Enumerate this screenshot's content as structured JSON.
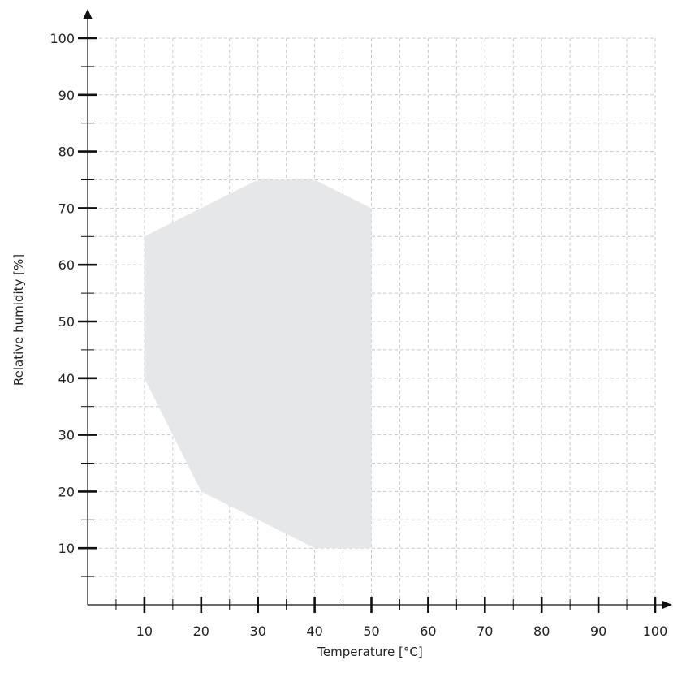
{
  "chart_data": {
    "type": "area",
    "title": "",
    "xlabel": "Temperature [°C]",
    "ylabel": "Relative humidity [%]",
    "xlim": [
      0,
      100
    ],
    "ylim": [
      0,
      100
    ],
    "x_ticks": [
      10,
      20,
      30,
      40,
      50,
      60,
      70,
      80,
      90,
      100
    ],
    "y_ticks": [
      10,
      20,
      30,
      40,
      50,
      60,
      70,
      80,
      90,
      100
    ],
    "minor_tick_step": 5,
    "grid": true,
    "grid_style": "dashed",
    "series": [
      {
        "points": [
          [
            10,
            65
          ],
          [
            20,
            70
          ],
          [
            30,
            75
          ],
          [
            40,
            75
          ],
          [
            50,
            70
          ],
          [
            50,
            10
          ],
          [
            40,
            10
          ],
          [
            30,
            15
          ],
          [
            20,
            20
          ],
          [
            10,
            40
          ]
        ],
        "fill_color": "#e6e7e8"
      }
    ]
  },
  "colors": {
    "axis": "#111111",
    "grid": "#c9c9c9",
    "text": "#222222"
  }
}
